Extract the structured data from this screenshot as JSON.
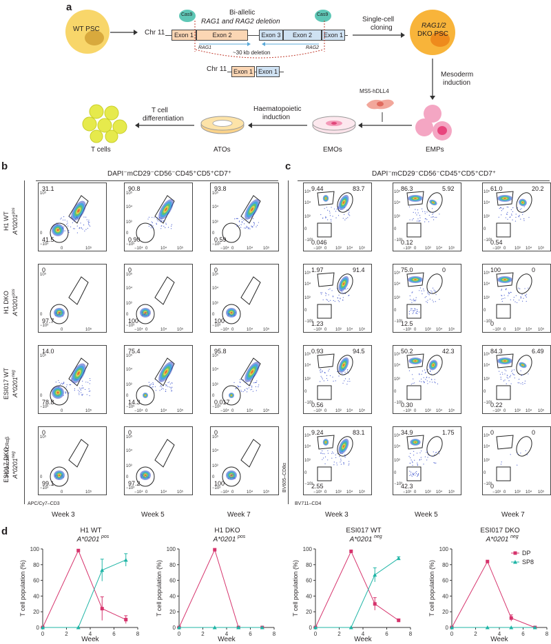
{
  "panel_a": {
    "letter": "a",
    "wt_psc": "WT PSC",
    "chr_label": "Chr 11",
    "exon1": "Exon 1",
    "exon2": "Exon 2",
    "exon3": "Exon 3",
    "cas9": "Cas9",
    "deletion_title_line1": "Bi-allelic",
    "deletion_title_line2": "RAG1 and RAG2 deletion",
    "rag1": "RAG1",
    "rag2": "RAG2",
    "kb_deletion": "~30 kb deletion",
    "cloning_line1": "Single-cell",
    "cloning_line2": "cloning",
    "dko_line1": "RAG1/2",
    "dko_line2": "DKO PSC",
    "mesoderm_line1": "Mesoderm",
    "mesoderm_line2": "induction",
    "ms5": "MS5-hDLL4",
    "haemato_line1": "Haematopoietic",
    "haemato_line2": "induction",
    "tdiff_line1": "T cell",
    "tdiff_line2": "differentiation",
    "tcells": "T cells",
    "atos": "ATOs",
    "emos": "EMOs",
    "emps": "EMPs"
  },
  "panel_b": {
    "letter": "b",
    "header": "DAPI⁻mCD29⁻CD56⁻CD45⁺CD5⁺CD7⁺",
    "x_axis": "APC/Cy7–CD3",
    "y_axis": "PE/Dazzle–TCRαβ",
    "weeks": [
      "Week 3",
      "Week 5",
      "Week 7"
    ],
    "rows": [
      {
        "line1": "H1 WT",
        "line2": "A*0201",
        "sup": "pos",
        "vals": [
          [
            "31.1",
            "41.5"
          ],
          [
            "90.8",
            "0.90"
          ],
          [
            "93.8",
            "0.59"
          ]
        ]
      },
      {
        "line1": "H1 DKO",
        "line2": "A*0201",
        "sup": "pos",
        "vals": [
          [
            "0",
            "97.7"
          ],
          [
            "0",
            "100"
          ],
          [
            "0",
            "100"
          ]
        ]
      },
      {
        "line1": "ESI017 WT",
        "line2": "A*0201",
        "sup": "neg",
        "vals": [
          [
            "14.0",
            "78.8"
          ],
          [
            "75.4",
            "14.3"
          ],
          [
            "95.8",
            "0.017"
          ]
        ]
      },
      {
        "line1": "ESI017 DKO",
        "line2": "A*0201",
        "sup": "neg",
        "vals": [
          [
            "0",
            "99.1"
          ],
          [
            "0",
            "97.2"
          ],
          [
            "0",
            "100"
          ]
        ]
      }
    ]
  },
  "panel_c": {
    "letter": "c",
    "header": "DAPI⁻mCD29⁻CD56⁻CD45⁺CD5⁺CD7⁺",
    "x_axis": "BV711–CD4",
    "y_axis": "BV605–CD8α",
    "weeks": [
      "Week 3",
      "Week 5",
      "Week 7"
    ],
    "rows": [
      [
        [
          "9.44",
          "83.7",
          "0.046"
        ],
        [
          "86.3",
          "5.92",
          "0.12"
        ],
        [
          "61.0",
          "20.2",
          "0.54"
        ]
      ],
      [
        [
          "1.97",
          "91.4",
          "1.23"
        ],
        [
          "75.0",
          "0",
          "12.5"
        ],
        [
          "100",
          "0",
          "0"
        ]
      ],
      [
        [
          "0.93",
          "94.5",
          "0.56"
        ],
        [
          "50.2",
          "42.3",
          "0.30"
        ],
        [
          "84.3",
          "6.49",
          "0.22"
        ]
      ],
      [
        [
          "9.24",
          "83.1",
          "2.55"
        ],
        [
          "34.9",
          "1.75",
          "42.3"
        ],
        [
          "0",
          "0",
          "0"
        ]
      ]
    ]
  },
  "panel_d": {
    "letter": "d",
    "ylabel": "T cell population (%)",
    "xlabel": "Week",
    "legend": [
      "DP",
      "SP8"
    ]
  },
  "tick_labels": {
    "y_exp": [
      "10⁵",
      "10⁴",
      "10³",
      "0",
      "−10³"
    ],
    "x_b1": [
      "0",
      "10⁵"
    ],
    "x_b2": [
      "−10⁴",
      "0",
      "10⁴",
      "10⁵"
    ],
    "x_c": [
      "−10³",
      "0",
      "10³",
      "10⁴",
      "10⁵"
    ]
  },
  "colors": {
    "dp": "#d6336c",
    "sp8": "#1fb5a6",
    "cell_yellow": "#f7d94c",
    "cell_orange": "#f5a623"
  },
  "chart_data": [
    {
      "type": "line",
      "title": "H1 WT A*0201pos",
      "xlabel": "Week",
      "ylabel": "T cell population (%)",
      "xlim": [
        0,
        8
      ],
      "ylim": [
        0,
        100
      ],
      "x": [
        0,
        3,
        5,
        7
      ],
      "series": [
        {
          "name": "DP",
          "values": [
            0,
            98,
            24,
            10
          ],
          "err": [
            0,
            0,
            15,
            5
          ]
        },
        {
          "name": "SP8",
          "values": [
            0,
            0,
            73,
            86
          ],
          "err": [
            0,
            0,
            14,
            8
          ]
        }
      ]
    },
    {
      "type": "line",
      "title": "H1 DKO A*0201pos",
      "xlabel": "Week",
      "ylabel": "T cell population (%)",
      "xlim": [
        0,
        8
      ],
      "ylim": [
        0,
        100
      ],
      "x": [
        0,
        3,
        5,
        7
      ],
      "series": [
        {
          "name": "DP",
          "values": [
            0,
            99,
            0,
            0
          ],
          "err": [
            0,
            0,
            0,
            0
          ]
        },
        {
          "name": "SP8",
          "values": [
            0,
            0,
            0,
            0
          ],
          "err": [
            0,
            0,
            0,
            0
          ]
        }
      ]
    },
    {
      "type": "line",
      "title": "ESI017 WT A*0201neg",
      "xlabel": "Week",
      "ylabel": "T cell population (%)",
      "xlim": [
        0,
        8
      ],
      "ylim": [
        0,
        100
      ],
      "x": [
        0,
        3,
        5,
        7
      ],
      "series": [
        {
          "name": "DP",
          "values": [
            0,
            97,
            30,
            9
          ],
          "err": [
            0,
            0,
            8,
            2
          ]
        },
        {
          "name": "SP8",
          "values": [
            0,
            0,
            67,
            88
          ],
          "err": [
            0,
            0,
            9,
            2
          ]
        }
      ]
    },
    {
      "type": "line",
      "title": "ESI017 DKO A*0201neg",
      "xlabel": "Week",
      "ylabel": "T cell population (%)",
      "xlim": [
        0,
        8
      ],
      "ylim": [
        0,
        100
      ],
      "x": [
        0,
        3,
        5,
        7
      ],
      "series": [
        {
          "name": "DP",
          "values": [
            0,
            84,
            12,
            0
          ],
          "err": [
            0,
            0,
            4,
            0
          ]
        },
        {
          "name": "SP8",
          "values": [
            0,
            0,
            0,
            0
          ],
          "err": [
            0,
            0,
            0,
            0
          ]
        }
      ]
    }
  ]
}
